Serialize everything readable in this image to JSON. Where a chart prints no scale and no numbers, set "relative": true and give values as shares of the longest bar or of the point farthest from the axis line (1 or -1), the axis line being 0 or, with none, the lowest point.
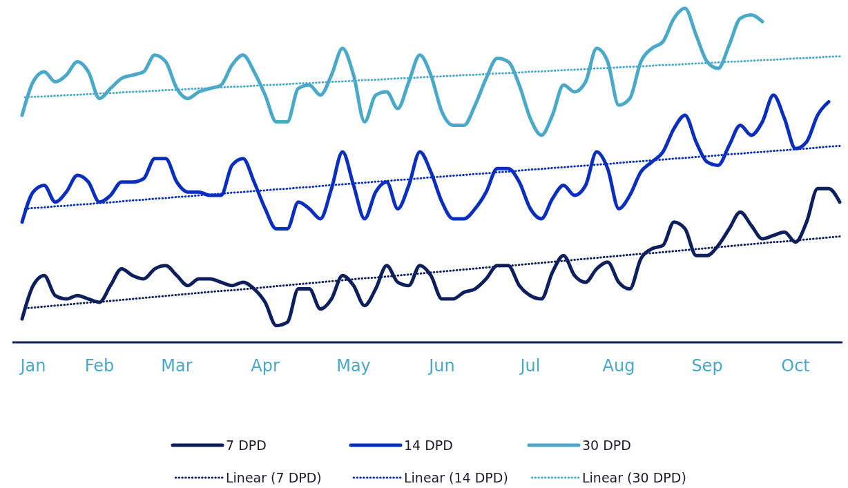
{
  "chart_data": {
    "type": "line",
    "relative": true,
    "legend": "bottom",
    "categories": [
      null,
      "Jan",
      null,
      null,
      null,
      null,
      null,
      "Feb",
      null,
      null,
      null,
      null,
      null,
      null,
      "Mar",
      null,
      null,
      null,
      null,
      null,
      null,
      null,
      "Apr",
      null,
      null,
      null,
      null,
      null,
      null,
      null,
      "May",
      null,
      null,
      null,
      null,
      null,
      null,
      null,
      "Jun",
      null,
      null,
      null,
      null,
      null,
      null,
      null,
      "Jul",
      null,
      null,
      null,
      null,
      null,
      null,
      null,
      "Aug",
      null,
      null,
      null,
      null,
      null,
      null,
      null,
      "Sep",
      null,
      null,
      null,
      null,
      null,
      null,
      null,
      "Oct",
      null,
      null,
      null,
      null
    ],
    "series": [
      {
        "name": "7 DPD",
        "color": "#0d1f5c",
        "line_style": "solid",
        "values": [
          0.07,
          0.17,
          0.2,
          0.14,
          0.13,
          0.14,
          0.13,
          0.12,
          0.17,
          0.22,
          0.2,
          0.19,
          0.22,
          0.23,
          0.2,
          0.17,
          0.19,
          0.19,
          0.18,
          0.17,
          0.18,
          0.16,
          0.12,
          0.05,
          0.06,
          0.16,
          0.16,
          0.1,
          0.13,
          0.2,
          0.17,
          0.11,
          0.16,
          0.23,
          0.18,
          0.17,
          0.23,
          0.2,
          0.13,
          0.13,
          0.15,
          0.16,
          0.19,
          0.23,
          0.23,
          0.17,
          0.14,
          0.13,
          0.21,
          0.26,
          0.2,
          0.18,
          0.22,
          0.24,
          0.18,
          0.16,
          0.25,
          0.28,
          0.29,
          0.36,
          0.34,
          0.26,
          0.26,
          0.29,
          0.34,
          0.39,
          0.35,
          0.31,
          0.32,
          0.33,
          0.3,
          0.36,
          0.46,
          0.46,
          0.42
        ]
      },
      {
        "name": "14 DPD",
        "color": "#0a2fbf",
        "line_style": "solid",
        "values": [
          0.36,
          0.45,
          0.47,
          0.42,
          0.45,
          0.5,
          0.48,
          0.42,
          0.44,
          0.48,
          0.48,
          0.49,
          0.55,
          0.55,
          0.48,
          0.45,
          0.45,
          0.44,
          0.44,
          0.53,
          0.55,
          0.48,
          0.4,
          0.34,
          0.34,
          0.42,
          0.4,
          0.37,
          0.46,
          0.57,
          0.47,
          0.37,
          0.45,
          0.48,
          0.4,
          0.47,
          0.57,
          0.51,
          0.42,
          0.37,
          0.37,
          0.4,
          0.45,
          0.52,
          0.52,
          0.48,
          0.4,
          0.37,
          0.43,
          0.47,
          0.44,
          0.47,
          0.57,
          0.52,
          0.4,
          0.44,
          0.51,
          0.54,
          0.57,
          0.64,
          0.68,
          0.6,
          0.54,
          0.53,
          0.59,
          0.65,
          0.62,
          0.66,
          0.74,
          0.67,
          0.58,
          0.6,
          0.68,
          0.72,
          null
        ]
      },
      {
        "name": "30 DPD",
        "color": "#4aa8c8",
        "line_style": "solid",
        "values": [
          0.68,
          0.78,
          0.81,
          0.78,
          0.8,
          0.84,
          0.81,
          0.73,
          0.76,
          0.79,
          0.8,
          0.81,
          0.86,
          0.84,
          0.76,
          0.73,
          0.75,
          0.76,
          0.77,
          0.83,
          0.86,
          0.81,
          0.74,
          0.66,
          0.66,
          0.76,
          0.77,
          0.74,
          0.8,
          0.88,
          0.8,
          0.66,
          0.74,
          0.75,
          0.7,
          0.78,
          0.86,
          0.8,
          0.69,
          0.65,
          0.65,
          0.71,
          0.79,
          0.85,
          0.84,
          0.77,
          0.67,
          0.62,
          0.68,
          0.77,
          0.75,
          0.78,
          0.88,
          0.84,
          0.71,
          0.73,
          0.84,
          0.88,
          0.9,
          0.97,
          1.0,
          0.92,
          0.84,
          0.82,
          0.89,
          0.97,
          0.98,
          0.96,
          null,
          null,
          null,
          null,
          null,
          null,
          null
        ]
      },
      {
        "name": "Linear (7 DPD)",
        "color": "#0d1f5c",
        "line_style": "dotted",
        "values": [
          0.101,
          0.104,
          0.107,
          0.11,
          0.113,
          0.116,
          0.119,
          0.121,
          0.124,
          0.127,
          0.13,
          0.133,
          0.136,
          0.139,
          0.142,
          0.145,
          0.148,
          0.151,
          0.154,
          0.156,
          0.159,
          0.162,
          0.165,
          0.168,
          0.171,
          0.174,
          0.177,
          0.18,
          0.183,
          0.186,
          0.189,
          0.192,
          0.194,
          0.197,
          0.2,
          0.203,
          0.206,
          0.209,
          0.212,
          0.215,
          0.218,
          0.221,
          0.224,
          0.227,
          0.229,
          0.232,
          0.235,
          0.238,
          0.241,
          0.244,
          0.247,
          0.25,
          0.253,
          0.256,
          0.259,
          0.262,
          0.265,
          0.267,
          0.27,
          0.273,
          0.276,
          0.279,
          0.282,
          0.285,
          0.288,
          0.291,
          0.294,
          0.297,
          0.3,
          0.302,
          0.305,
          0.308,
          0.311,
          0.314,
          0.317
        ]
      },
      {
        "name": "Linear (14 DPD)",
        "color": "#0a2fbf",
        "line_style": "dotted",
        "values": [
          0.399,
          0.402,
          0.404,
          0.407,
          0.409,
          0.412,
          0.414,
          0.417,
          0.419,
          0.422,
          0.425,
          0.427,
          0.43,
          0.432,
          0.435,
          0.437,
          0.44,
          0.442,
          0.445,
          0.448,
          0.45,
          0.453,
          0.455,
          0.458,
          0.46,
          0.463,
          0.465,
          0.468,
          0.471,
          0.473,
          0.476,
          0.478,
          0.481,
          0.483,
          0.486,
          0.488,
          0.491,
          0.494,
          0.496,
          0.499,
          0.501,
          0.504,
          0.506,
          0.509,
          0.511,
          0.514,
          0.517,
          0.519,
          0.522,
          0.524,
          0.527,
          0.529,
          0.532,
          0.534,
          0.537,
          0.54,
          0.542,
          0.545,
          0.547,
          0.55,
          0.552,
          0.555,
          0.557,
          0.56,
          0.563,
          0.565,
          0.568,
          0.57,
          0.573,
          0.575,
          0.578,
          0.58,
          0.583,
          0.586,
          0.588
        ]
      },
      {
        "name": "Linear (30 DPD)",
        "color": "#4aa8c8",
        "line_style": "dotted",
        "values": [
          0.733,
          0.735,
          0.736,
          0.738,
          0.74,
          0.741,
          0.743,
          0.745,
          0.746,
          0.748,
          0.75,
          0.751,
          0.753,
          0.755,
          0.756,
          0.758,
          0.76,
          0.761,
          0.763,
          0.765,
          0.766,
          0.768,
          0.77,
          0.771,
          0.773,
          0.775,
          0.776,
          0.778,
          0.78,
          0.781,
          0.783,
          0.785,
          0.786,
          0.788,
          0.79,
          0.791,
          0.793,
          0.795,
          0.796,
          0.798,
          0.8,
          0.801,
          0.803,
          0.805,
          0.806,
          0.808,
          0.81,
          0.811,
          0.813,
          0.815,
          0.816,
          0.818,
          0.82,
          0.821,
          0.823,
          0.825,
          0.826,
          0.828,
          0.83,
          0.831,
          0.833,
          0.835,
          0.836,
          0.838,
          0.84,
          0.841,
          0.843,
          0.845,
          0.846,
          0.848,
          0.85,
          0.851,
          0.853,
          0.855,
          0.856
        ]
      }
    ]
  }
}
